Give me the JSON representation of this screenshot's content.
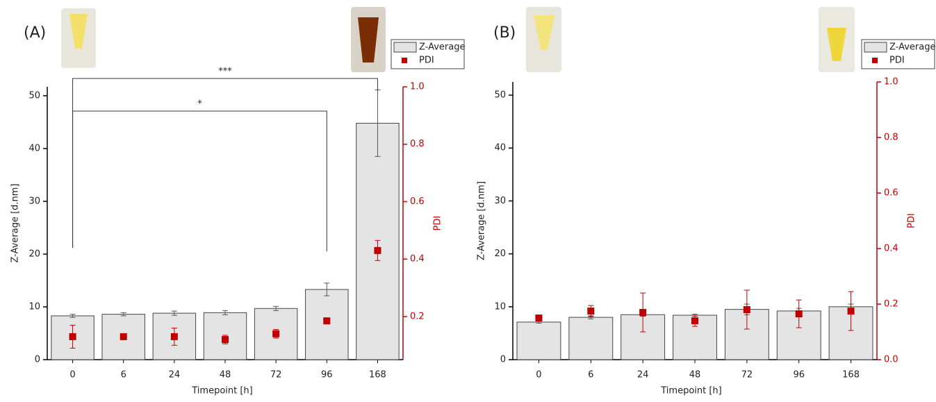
{
  "chart_data": [
    {
      "type": "bar",
      "panel_label": "(A)",
      "x_label": "Timepoint [h]",
      "y_label": "Z-Average [d.nm]",
      "y2_label": "PDI",
      "categories": [
        "0",
        "6",
        "24",
        "48",
        "72",
        "96",
        "168"
      ],
      "series": [
        {
          "name": "Z-Average",
          "color": "#e4e4e4",
          "values": [
            8.3,
            8.6,
            8.8,
            8.9,
            9.7,
            13.3,
            44.8
          ],
          "errors": [
            0.3,
            0.3,
            0.4,
            0.4,
            0.4,
            1.2,
            6.3
          ]
        },
        {
          "name": "PDI",
          "type": "scatter",
          "axis": "y2",
          "color": "#c00000",
          "values": [
            0.13,
            0.13,
            0.13,
            0.12,
            0.14,
            0.185,
            0.43
          ],
          "errors": [
            0.04,
            0.01,
            0.03,
            0.015,
            0.015,
            0.008,
            0.035
          ]
        }
      ],
      "ylim": [
        0,
        51.7
      ],
      "yticks": [
        0,
        10,
        20,
        30,
        40,
        50
      ],
      "y2lim": [
        0.05,
        1.0
      ],
      "y2ticks": [
        0.2,
        0.4,
        0.6,
        0.8,
        {
          "value": 1.0,
          "label": "1.0"
        }
      ],
      "annotations": [
        {
          "text": "***"
        },
        {
          "text": "*"
        }
      ]
    },
    {
      "type": "bar",
      "panel_label": "(B)",
      "x_label": "Timepoint [h]",
      "y_label": "Z-Average [d.nm]",
      "y2_label": "PDI",
      "categories": [
        "0",
        "6",
        "24",
        "48",
        "72",
        "96",
        "168"
      ],
      "series": [
        {
          "name": "Z-Average",
          "color": "#e4e4e4",
          "values": [
            7.1,
            8.0,
            8.5,
            8.4,
            9.5,
            9.2,
            10.0
          ],
          "errors": [
            0.2,
            0.3,
            0.3,
            0.2,
            1.0,
            0.5,
            0.5
          ]
        },
        {
          "name": "PDI",
          "type": "scatter",
          "axis": "y2",
          "color": "#c00000",
          "values": [
            0.15,
            0.175,
            0.17,
            0.14,
            0.18,
            0.165,
            0.175
          ],
          "errors": [
            0.005,
            0.02,
            0.07,
            0.02,
            0.07,
            0.05,
            0.07
          ]
        }
      ],
      "ylim": [
        0,
        52.5
      ],
      "yticks": [
        0,
        10,
        20,
        30,
        40,
        50
      ],
      "y2lim": [
        0,
        1.0
      ],
      "y2ticks": [
        {
          "value": 0,
          "label": "0.0"
        },
        0.2,
        0.4,
        0.6,
        0.8,
        {
          "value": 1.0,
          "label": "1.0"
        }
      ]
    }
  ]
}
